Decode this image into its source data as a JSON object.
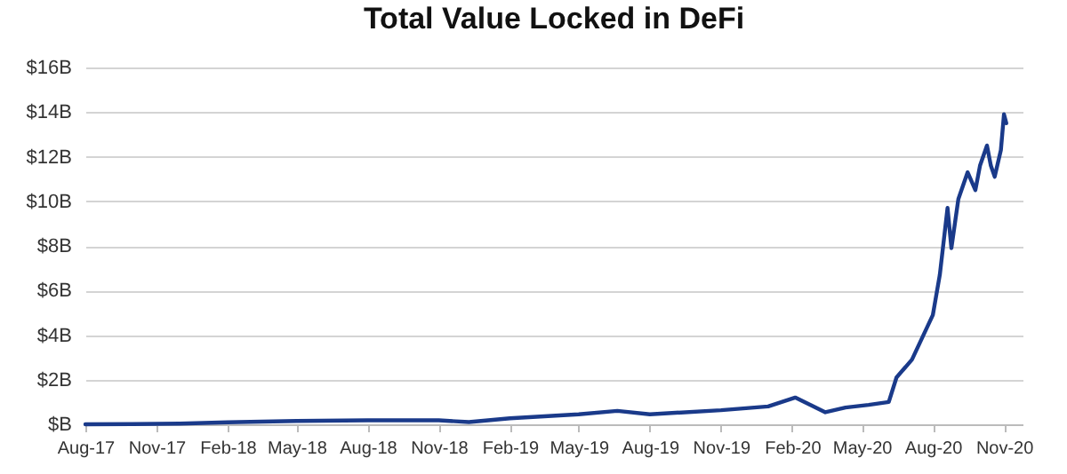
{
  "chart_data": {
    "type": "line",
    "title": "Total Value Locked in DeFi",
    "x": [
      "2017-08-01",
      "2017-10-01",
      "2017-12-01",
      "2018-02-01",
      "2018-05-01",
      "2018-08-01",
      "2018-11-01",
      "2018-12-10",
      "2019-02-01",
      "2019-05-01",
      "2019-06-20",
      "2019-08-01",
      "2019-11-01",
      "2020-01-01",
      "2020-02-05",
      "2020-03-15",
      "2020-04-10",
      "2020-05-10",
      "2020-06-05",
      "2020-06-15",
      "2020-07-05",
      "2020-08-01",
      "2020-08-10",
      "2020-08-20",
      "2020-08-25",
      "2020-09-03",
      "2020-09-15",
      "2020-09-25",
      "2020-10-01",
      "2020-10-10",
      "2020-10-15",
      "2020-10-20",
      "2020-10-28",
      "2020-11-01",
      "2020-11-04"
    ],
    "series": [
      {
        "color": "#1a3a8a",
        "values": [
          0,
          0.01,
          0.03,
          0.09,
          0.15,
          0.18,
          0.18,
          0.1,
          0.27,
          0.45,
          0.6,
          0.45,
          0.63,
          0.8,
          1.2,
          0.54,
          0.75,
          0.87,
          1.0,
          2.1,
          2.9,
          4.9,
          6.7,
          9.7,
          7.9,
          10.1,
          11.3,
          10.5,
          11.6,
          12.5,
          11.6,
          11.1,
          12.3,
          13.9,
          13.5
        ]
      }
    ],
    "xlim": [
      "2017-08-01",
      "2020-11-25"
    ],
    "xticks": [
      {
        "value": "2017-08-01",
        "label": "Aug-17"
      },
      {
        "value": "2017-11-01",
        "label": "Nov-17"
      },
      {
        "value": "2018-02-01",
        "label": "Feb-18"
      },
      {
        "value": "2018-05-01",
        "label": "May-18"
      },
      {
        "value": "2018-08-01",
        "label": "Aug-18"
      },
      {
        "value": "2018-11-01",
        "label": "Nov-18"
      },
      {
        "value": "2019-02-01",
        "label": "Feb-19"
      },
      {
        "value": "2019-05-01",
        "label": "May-19"
      },
      {
        "value": "2019-08-01",
        "label": "Aug-19"
      },
      {
        "value": "2019-11-01",
        "label": "Nov-19"
      },
      {
        "value": "2020-02-01",
        "label": "Feb-20"
      },
      {
        "value": "2020-05-01",
        "label": "May-20"
      },
      {
        "value": "2020-08-01",
        "label": "Aug-20"
      },
      {
        "value": "2020-11-01",
        "label": "Nov-20"
      }
    ],
    "ylim": [
      0,
      16
    ],
    "yticks": [
      {
        "value": 0,
        "label": "$B"
      },
      {
        "value": 2,
        "label": "$2B"
      },
      {
        "value": 4,
        "label": "$4B"
      },
      {
        "value": 6,
        "label": "$6B"
      },
      {
        "value": 8,
        "label": "$8B"
      },
      {
        "value": 10,
        "label": "$10B"
      },
      {
        "value": 12,
        "label": "$12B"
      },
      {
        "value": 14,
        "label": "$14B"
      },
      {
        "value": 16,
        "label": "$16B"
      }
    ],
    "grid": "y",
    "marker": "none",
    "line_style": "solid"
  }
}
